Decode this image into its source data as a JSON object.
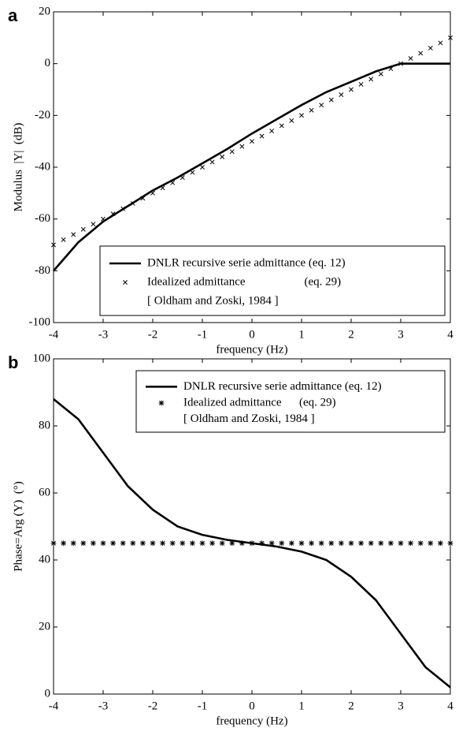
{
  "chart_data": [
    {
      "type": "line",
      "panel_label": "a",
      "xlabel": "frequency (Hz)",
      "ylabel": "Modulus  |Y|  (dB)",
      "xlim": [
        -4,
        4
      ],
      "xticks": [
        -4,
        -3,
        -2,
        -1,
        0,
        1,
        2,
        3,
        4
      ],
      "ylim": [
        -100,
        20
      ],
      "yticks": [
        -100,
        -80,
        -60,
        -40,
        -20,
        0,
        20
      ],
      "legend": "lower right",
      "legend_note": "[ Oldham and Zoski, 1984 ]",
      "series": [
        {
          "name": "DNLR recursive serie admittance (eq. 12)",
          "color": "#000000",
          "marker": "none",
          "x": [
            -4,
            -3.5,
            -3,
            -2.5,
            -2,
            -1.5,
            -1,
            -0.5,
            0,
            0.5,
            1,
            1.5,
            2,
            2.5,
            3,
            3.5,
            4
          ],
          "values": [
            -80,
            -69,
            -61,
            -55,
            -49,
            -44,
            -38.5,
            -33,
            -27,
            -21.5,
            -16,
            -11,
            -7,
            -3,
            0,
            0,
            0
          ]
        },
        {
          "name": "Idealized admittance                    (eq. 29)",
          "color": "#000000",
          "marker": "x",
          "x": [
            -4,
            -3.8,
            -3.6,
            -3.4,
            -3.2,
            -3,
            -2.8,
            -2.6,
            -2.4,
            -2.2,
            -2,
            -1.8,
            -1.6,
            -1.4,
            -1.2,
            -1,
            -0.8,
            -0.6,
            -0.4,
            -0.2,
            0,
            0.2,
            0.4,
            0.6,
            0.8,
            1,
            1.2,
            1.4,
            1.6,
            1.8,
            2,
            2.2,
            2.4,
            2.6,
            2.8,
            3,
            3.2,
            3.4,
            3.6,
            3.8,
            4
          ],
          "values": [
            -70,
            -68,
            -66,
            -64,
            -62,
            -60,
            -58,
            -56,
            -54,
            -52,
            -50,
            -48,
            -46,
            -44,
            -42,
            -40,
            -38,
            -36,
            -34,
            -32,
            -30,
            -28,
            -26,
            -24,
            -22,
            -20,
            -18,
            -16,
            -14,
            -12,
            -10,
            -8,
            -6,
            -4,
            -2,
            0,
            2,
            4,
            6,
            8,
            10
          ]
        }
      ]
    },
    {
      "type": "line",
      "panel_label": "b",
      "xlabel": "frequency (Hz)",
      "ylabel": "Phase=Arg (Y)  (°)",
      "xlim": [
        -4,
        4
      ],
      "xticks": [
        -4,
        -3,
        -2,
        -1,
        0,
        1,
        2,
        3,
        4
      ],
      "ylim": [
        0,
        100
      ],
      "yticks": [
        0,
        20,
        40,
        60,
        80,
        100
      ],
      "legend": "upper right",
      "legend_note": "[ Oldham and Zoski, 1984 ]",
      "series": [
        {
          "name": "DNLR recursive serie admittance (eq. 12)",
          "color": "#000000",
          "marker": "none",
          "x": [
            -4,
            -3.5,
            -3,
            -2.5,
            -2,
            -1.5,
            -1,
            -0.5,
            0,
            0.5,
            1,
            1.5,
            2,
            2.5,
            3,
            3.5,
            4
          ],
          "values": [
            88,
            82,
            72,
            62,
            55,
            50,
            47.5,
            46,
            45,
            44,
            42.5,
            40,
            35,
            28,
            18,
            8,
            2
          ]
        },
        {
          "name": "Idealized admittance      (eq. 29)",
          "color": "#000000",
          "marker": "*",
          "x": [
            -4,
            -3.8,
            -3.6,
            -3.4,
            -3.2,
            -3,
            -2.8,
            -2.6,
            -2.4,
            -2.2,
            -2,
            -1.8,
            -1.6,
            -1.4,
            -1.2,
            -1,
            -0.8,
            -0.6,
            -0.4,
            -0.2,
            0,
            0.2,
            0.4,
            0.6,
            0.8,
            1,
            1.2,
            1.4,
            1.6,
            1.8,
            2,
            2.2,
            2.4,
            2.6,
            2.8,
            3,
            3.2,
            3.4,
            3.6,
            3.8,
            4
          ],
          "values": [
            45,
            45,
            45,
            45,
            45,
            45,
            45,
            45,
            45,
            45,
            45,
            45,
            45,
            45,
            45,
            45,
            45,
            45,
            45,
            45,
            45,
            45,
            45,
            45,
            45,
            45,
            45,
            45,
            45,
            45,
            45,
            45,
            45,
            45,
            45,
            45,
            45,
            45,
            45,
            45,
            45
          ]
        }
      ]
    }
  ]
}
